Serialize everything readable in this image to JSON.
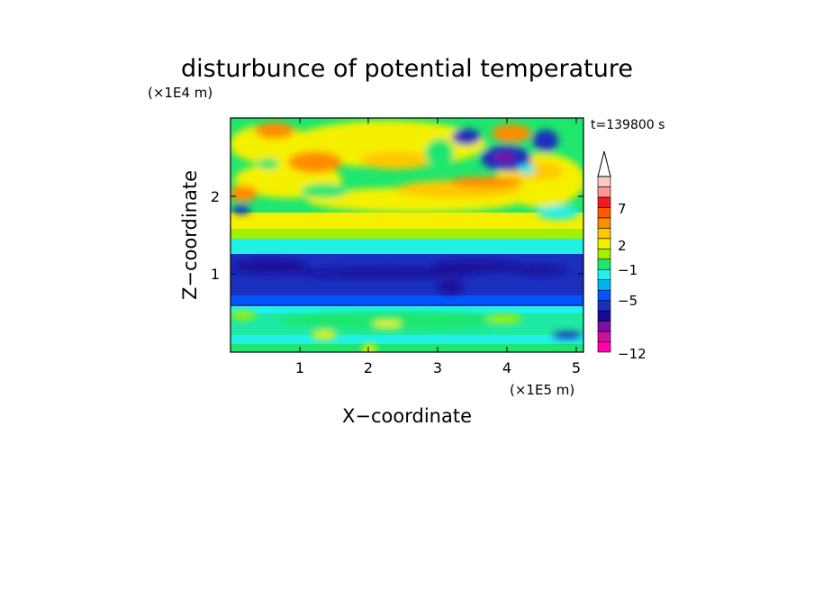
{
  "chart_data": {
    "type": "heatmap",
    "title": "disturbunce of potential temperature",
    "time_label": "t=139800 s",
    "xlabel": "X−coordinate",
    "ylabel": "Z−coordinate",
    "x_scale_label": "(×1E5 m)",
    "y_scale_label": "(×1E4 m)",
    "x_ticks": [
      "1",
      "2",
      "3",
      "4",
      "5"
    ],
    "y_ticks": [
      "1",
      "2"
    ],
    "xlim": [
      0,
      5.12
    ],
    "ylim": [
      0,
      3
    ],
    "grid": false,
    "colorbar": {
      "tick_labels": [
        "7",
        "2",
        "−1",
        "−5",
        "−12"
      ],
      "extend_max": true,
      "levels_bottom_to_top": [
        -12,
        -10,
        -8,
        -6,
        -5,
        -4,
        -3,
        -2,
        -1,
        0,
        1,
        2,
        3,
        4,
        5,
        7,
        9
      ],
      "colors_bottom_to_top": [
        "#ff00b0",
        "#cc1099",
        "#7d0ea3",
        "#1a0a96",
        "#1a2fbe",
        "#0055ff",
        "#00b4f0",
        "#20f0e6",
        "#1ee66e",
        "#a0f000",
        "#f5f000",
        "#ffc800",
        "#ff8c00",
        "#ff5a00",
        "#ee1c1c",
        "#ff9696",
        "#fcc8c8"
      ]
    },
    "field_description_points": [
      {
        "x": 3.3,
        "y": 2.75,
        "value": -5
      },
      {
        "x": 3.85,
        "y": 2.5,
        "value": -6
      },
      {
        "x": 4.55,
        "y": 2.75,
        "value": -5
      },
      {
        "x": 2.5,
        "y": 1.0,
        "value": -5
      }
    ]
  }
}
